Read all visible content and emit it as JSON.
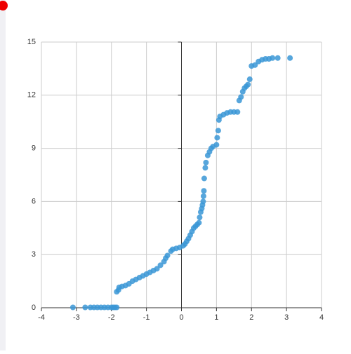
{
  "chart_data": {
    "type": "scatter",
    "color": "#3a97d6",
    "x": [
      -3.1,
      -2.75,
      -2.6,
      -2.5,
      -2.4,
      -2.3,
      -2.2,
      -2.1,
      -2.0,
      -1.95,
      -1.9,
      -1.85,
      -1.85,
      -1.8,
      -1.78,
      -1.7,
      -1.6,
      -1.5,
      -1.4,
      -1.3,
      -1.2,
      -1.1,
      -1.0,
      -0.9,
      -0.8,
      -0.7,
      -0.6,
      -0.5,
      -0.45,
      -0.4,
      -0.3,
      -0.25,
      -0.15,
      -0.05,
      0.05,
      0.1,
      0.15,
      0.2,
      0.25,
      0.3,
      0.35,
      0.4,
      0.45,
      0.5,
      0.52,
      0.55,
      0.58,
      0.6,
      0.62,
      0.63,
      0.64,
      0.65,
      0.68,
      0.7,
      0.75,
      0.8,
      0.85,
      0.9,
      1.0,
      1.02,
      1.05,
      1.07,
      1.1,
      1.2,
      1.3,
      1.4,
      1.5,
      1.6,
      1.65,
      1.7,
      1.75,
      1.8,
      1.85,
      1.9,
      1.95,
      2.0,
      2.1,
      2.2,
      2.3,
      2.4,
      2.5,
      2.6,
      2.75,
      3.1
    ],
    "y": [
      0.02,
      0.02,
      0.02,
      0.02,
      0.02,
      0.02,
      0.02,
      0.02,
      0.02,
      0.02,
      0.02,
      0.02,
      0.9,
      1.0,
      1.15,
      1.2,
      1.25,
      1.35,
      1.5,
      1.6,
      1.7,
      1.8,
      1.9,
      2.0,
      2.1,
      2.2,
      2.4,
      2.6,
      2.8,
      2.95,
      3.2,
      3.3,
      3.35,
      3.4,
      3.5,
      3.6,
      3.75,
      3.9,
      4.1,
      4.3,
      4.5,
      4.6,
      4.7,
      4.8,
      5.1,
      5.4,
      5.6,
      5.8,
      6.0,
      6.3,
      6.6,
      7.3,
      7.9,
      8.2,
      8.6,
      8.8,
      9.0,
      9.1,
      9.2,
      9.6,
      10.0,
      10.6,
      10.8,
      10.9,
      11.0,
      11.05,
      11.05,
      11.05,
      11.7,
      11.9,
      12.2,
      12.4,
      12.5,
      12.6,
      12.9,
      13.65,
      13.7,
      13.9,
      14.0,
      14.05,
      14.05,
      14.1,
      14.1,
      14.1
    ],
    "xlim": [
      -4,
      4
    ],
    "xticks": [
      -4,
      -3,
      -2,
      -1,
      0,
      1,
      2,
      3,
      4
    ],
    "ylim": [
      0,
      15
    ],
    "yticks": [
      0,
      3,
      6,
      9,
      12,
      15
    ],
    "grid": true
  }
}
